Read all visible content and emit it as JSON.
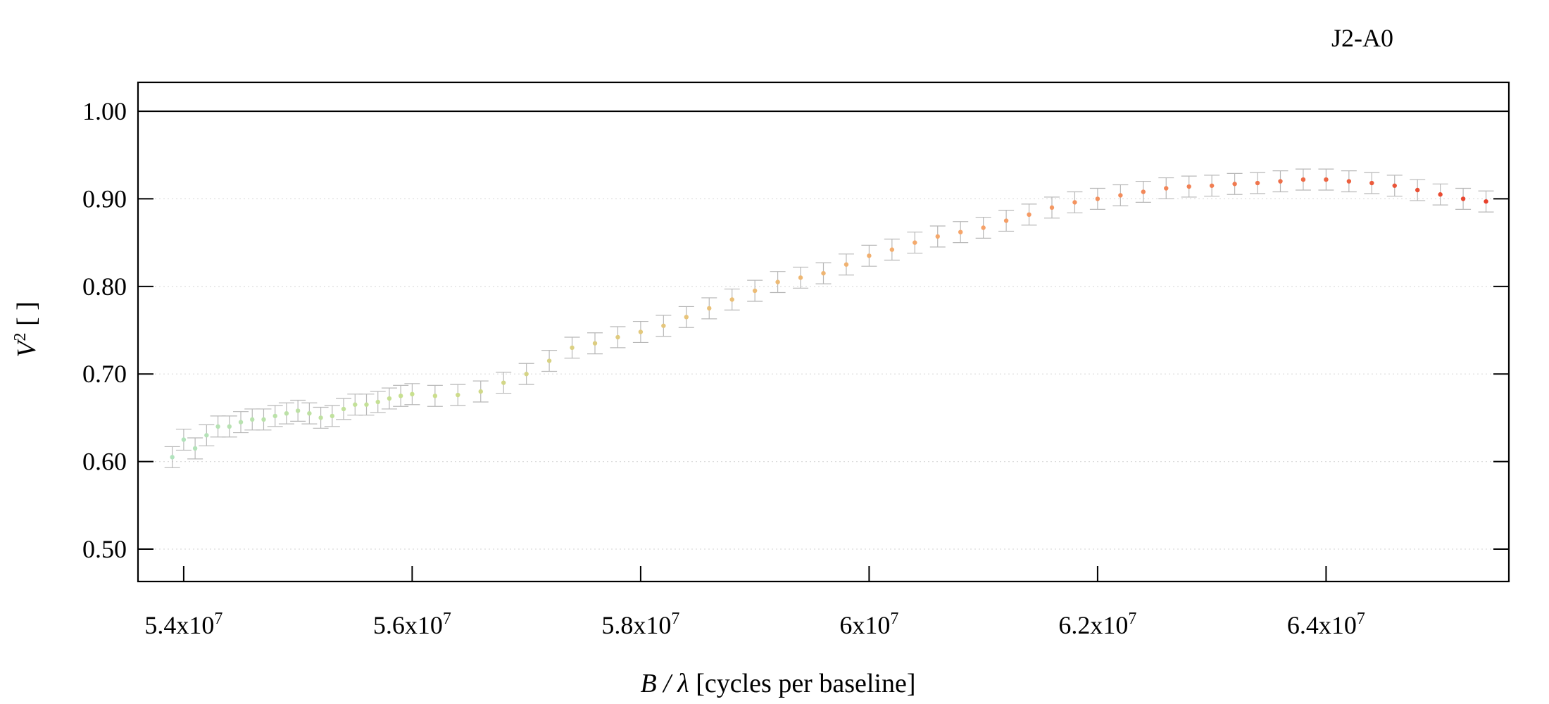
{
  "chart_data": {
    "type": "scatter",
    "title": "J2-A0",
    "xlabel": {
      "var": "B / λ",
      "unit": " [cycles per baseline]"
    },
    "ylabel": {
      "var": "V",
      "sup": "2",
      "unit": " [ ]"
    },
    "xlim": [
      53600000,
      65600000
    ],
    "ylim": [
      0.463,
      1.033
    ],
    "x_ticks": [
      {
        "value": 54000000,
        "mant": "5.4x10",
        "exp": "7"
      },
      {
        "value": 56000000,
        "mant": "5.6x10",
        "exp": "7"
      },
      {
        "value": 58000000,
        "mant": "5.8x10",
        "exp": "7"
      },
      {
        "value": 60000000,
        "mant": "6x10",
        "exp": "7"
      },
      {
        "value": 62000000,
        "mant": "6.2x10",
        "exp": "7"
      },
      {
        "value": 64000000,
        "mant": "6.4x10",
        "exp": "7"
      }
    ],
    "y_ticks": [
      {
        "value": 0.5,
        "label": "0.50"
      },
      {
        "value": 0.6,
        "label": "0.60"
      },
      {
        "value": 0.7,
        "label": "0.70"
      },
      {
        "value": 0.8,
        "label": "0.80"
      },
      {
        "value": 0.9,
        "label": "0.90"
      },
      {
        "value": 1.0,
        "label": "1.00"
      }
    ],
    "reference_line": 1.0,
    "grid": "horizontal-dotted",
    "colors": {
      "errorbar": "#b8b8b8",
      "gradient": [
        "#aee3c4",
        "#c8e08e",
        "#e8c47a",
        "#f6a56a",
        "#f07a50",
        "#e63b28"
      ],
      "frame": "#000000",
      "grid": "#dcdcdc"
    },
    "series": [
      {
        "error": 0.012,
        "points": [
          [
            53900000,
            0.605
          ],
          [
            54000000,
            0.625
          ],
          [
            54100000,
            0.615
          ],
          [
            54200000,
            0.63
          ],
          [
            54300000,
            0.64
          ],
          [
            54400000,
            0.64
          ],
          [
            54500000,
            0.645
          ],
          [
            54600000,
            0.648
          ],
          [
            54700000,
            0.648
          ],
          [
            54800000,
            0.652
          ],
          [
            54900000,
            0.655
          ],
          [
            55000000,
            0.658
          ],
          [
            55100000,
            0.655
          ],
          [
            55200000,
            0.65
          ],
          [
            55300000,
            0.652
          ],
          [
            55400000,
            0.66
          ],
          [
            55500000,
            0.665
          ],
          [
            55600000,
            0.665
          ],
          [
            55700000,
            0.668
          ],
          [
            55800000,
            0.672
          ],
          [
            55900000,
            0.675
          ],
          [
            56000000,
            0.677
          ],
          [
            56200000,
            0.675
          ],
          [
            56400000,
            0.676
          ],
          [
            56600000,
            0.68
          ],
          [
            56800000,
            0.69
          ],
          [
            57000000,
            0.7
          ],
          [
            57200000,
            0.715
          ],
          [
            57400000,
            0.73
          ],
          [
            57600000,
            0.735
          ],
          [
            57800000,
            0.742
          ],
          [
            58000000,
            0.748
          ],
          [
            58200000,
            0.755
          ],
          [
            58400000,
            0.765
          ],
          [
            58600000,
            0.775
          ],
          [
            58800000,
            0.785
          ],
          [
            59000000,
            0.795
          ],
          [
            59200000,
            0.805
          ],
          [
            59400000,
            0.81
          ],
          [
            59600000,
            0.815
          ],
          [
            59800000,
            0.825
          ],
          [
            60000000,
            0.835
          ],
          [
            60200000,
            0.842
          ],
          [
            60400000,
            0.85
          ],
          [
            60600000,
            0.857
          ],
          [
            60800000,
            0.862
          ],
          [
            61000000,
            0.867
          ],
          [
            61200000,
            0.875
          ],
          [
            61400000,
            0.882
          ],
          [
            61600000,
            0.89
          ],
          [
            61800000,
            0.896
          ],
          [
            62000000,
            0.9
          ],
          [
            62200000,
            0.904
          ],
          [
            62400000,
            0.908
          ],
          [
            62600000,
            0.912
          ],
          [
            62800000,
            0.914
          ],
          [
            63000000,
            0.915
          ],
          [
            63200000,
            0.917
          ],
          [
            63400000,
            0.918
          ],
          [
            63600000,
            0.92
          ],
          [
            63800000,
            0.922
          ],
          [
            64000000,
            0.922
          ],
          [
            64200000,
            0.92
          ],
          [
            64400000,
            0.918
          ],
          [
            64600000,
            0.915
          ],
          [
            64800000,
            0.91
          ],
          [
            65000000,
            0.905
          ],
          [
            65200000,
            0.9
          ],
          [
            65400000,
            0.897
          ]
        ]
      }
    ]
  }
}
